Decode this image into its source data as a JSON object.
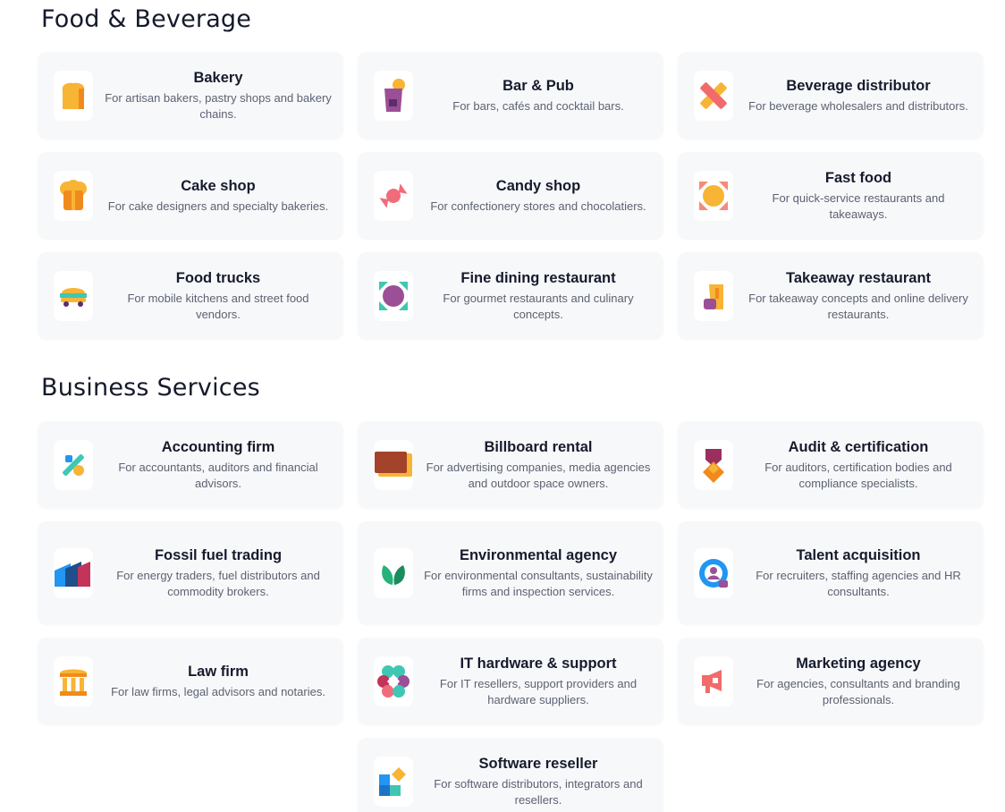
{
  "sections": [
    {
      "title": "Food & Beverage",
      "cards": [
        {
          "title": "Bakery",
          "desc": "For artisan bakers, pastry shops and bakery chains.",
          "icon": "bread-icon"
        },
        {
          "title": "Bar & Pub",
          "desc": "For bars, cafés and cocktail bars.",
          "icon": "cocktail-glass-icon"
        },
        {
          "title": "Beverage distributor",
          "desc": "For beverage wholesalers and distributors.",
          "icon": "crossed-bottles-icon"
        },
        {
          "title": "Cake shop",
          "desc": "For cake designers and specialty bakeries.",
          "icon": "chef-hat-icon"
        },
        {
          "title": "Candy shop",
          "desc": "For confectionery stores and chocolatiers.",
          "icon": "wrapped-candy-icon"
        },
        {
          "title": "Fast food",
          "desc": "For quick-service restaurants and takeaways.",
          "icon": "burger-icon"
        },
        {
          "title": "Food trucks",
          "desc": "For mobile kitchens and street food vendors.",
          "icon": "food-truck-icon"
        },
        {
          "title": "Fine dining restaurant",
          "desc": "For gourmet restaurants and culinary concepts.",
          "icon": "plate-icon"
        },
        {
          "title": "Takeaway restaurant",
          "desc": "For takeaway concepts and online delivery restaurants.",
          "icon": "takeaway-bag-icon"
        }
      ]
    },
    {
      "title": "Business Services",
      "cards": [
        {
          "title": "Accounting firm",
          "desc": "For accountants, auditors and financial advisors.",
          "icon": "percent-icon"
        },
        {
          "title": "Billboard rental",
          "desc": "For advertising companies, media agencies and outdoor space owners.",
          "icon": "billboard-icon"
        },
        {
          "title": "Audit & certification",
          "desc": "For auditors, certification bodies and compliance specialists.",
          "icon": "badge-icon"
        },
        {
          "title": "Fossil fuel trading",
          "desc": "For energy traders, fuel distributors and commodity brokers.",
          "icon": "factory-icon"
        },
        {
          "title": "Environmental agency",
          "desc": "For environmental consultants, sustainability firms and inspection services.",
          "icon": "leaf-icon"
        },
        {
          "title": "Talent acquisition",
          "desc": "For recruiters, staffing agencies and HR consultants.",
          "icon": "search-person-icon"
        },
        {
          "title": "Law firm",
          "desc": "For law firms, legal advisors and notaries.",
          "icon": "courthouse-icon"
        },
        {
          "title": "IT hardware & support",
          "desc": "For IT resellers, support providers and hardware suppliers.",
          "icon": "network-icon"
        },
        {
          "title": "Marketing agency",
          "desc": "For agencies, consultants and branding professionals.",
          "icon": "megaphone-icon"
        },
        {
          "title": "Software reseller",
          "desc": "For software distributors, integrators and resellers.",
          "icon": "app-blocks-icon"
        }
      ]
    }
  ]
}
